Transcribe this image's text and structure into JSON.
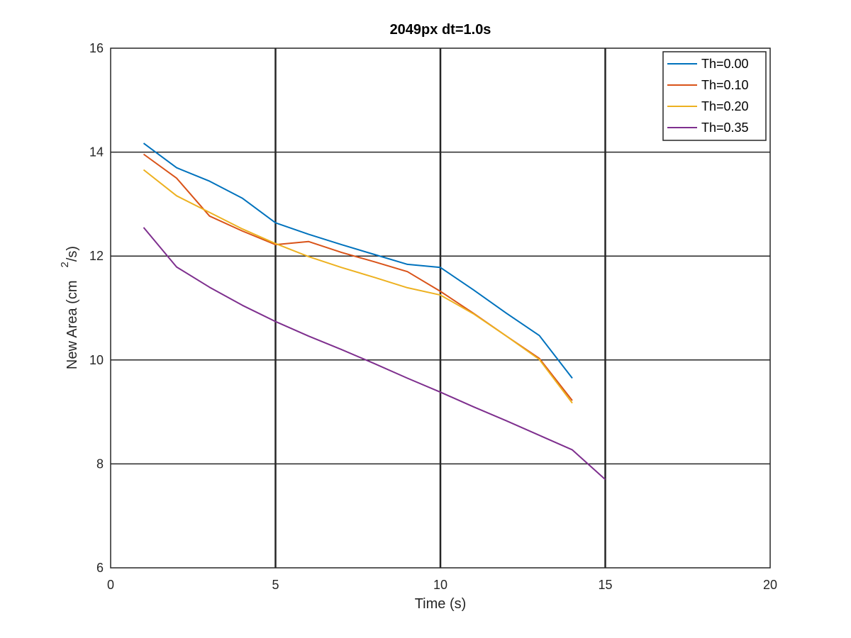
{
  "chart_data": {
    "type": "line",
    "title": "2049px dt=1.0s",
    "xlabel": "Time (s)",
    "ylabel": "New Area (cm",
    "ylabel_superscript": "2",
    "ylabel_suffix": "/s)",
    "xlim": [
      0,
      20
    ],
    "ylim": [
      6,
      16
    ],
    "xticks": [
      0,
      5,
      10,
      15,
      20
    ],
    "yticks": [
      6,
      8,
      10,
      12,
      14,
      16
    ],
    "xtick_labels": [
      "0",
      "5",
      "10",
      "15",
      "20"
    ],
    "ytick_labels": [
      "6",
      "8",
      "10",
      "12",
      "14",
      "16"
    ],
    "grid": true,
    "legend_position": "top-right",
    "series": [
      {
        "name": "Th=0.00",
        "color": "#0072BD",
        "x": [
          1,
          2,
          3,
          4,
          5,
          6,
          7,
          8,
          9,
          10,
          11,
          12,
          13,
          14
        ],
        "y": [
          14.17,
          13.7,
          13.44,
          13.11,
          12.64,
          12.42,
          12.22,
          12.03,
          11.84,
          11.78,
          11.35,
          10.9,
          10.47,
          9.65
        ]
      },
      {
        "name": "Th=0.10",
        "color": "#D95319",
        "x": [
          1,
          2,
          3,
          4,
          5,
          6,
          7,
          8,
          9,
          10,
          11,
          12,
          13,
          14
        ],
        "y": [
          13.96,
          13.5,
          12.77,
          12.48,
          12.22,
          12.28,
          12.07,
          11.89,
          11.7,
          11.32,
          10.9,
          10.46,
          10.03,
          9.22
        ]
      },
      {
        "name": "Th=0.20",
        "color": "#EDB120",
        "x": [
          1,
          2,
          3,
          4,
          5,
          6,
          7,
          8,
          9,
          10,
          11,
          12,
          13,
          14
        ],
        "y": [
          13.66,
          13.16,
          12.84,
          12.52,
          12.24,
          11.99,
          11.78,
          11.59,
          11.39,
          11.25,
          10.89,
          10.46,
          10.01,
          9.17
        ]
      },
      {
        "name": "Th=0.35",
        "color": "#7E2F8E",
        "x": [
          1,
          2,
          3,
          4,
          5,
          6,
          7,
          8,
          9,
          10,
          11,
          12,
          13,
          14,
          15
        ],
        "y": [
          12.55,
          11.79,
          11.4,
          11.05,
          10.74,
          10.46,
          10.2,
          9.93,
          9.65,
          9.38,
          9.1,
          8.83,
          8.55,
          8.27,
          7.7
        ]
      }
    ]
  }
}
